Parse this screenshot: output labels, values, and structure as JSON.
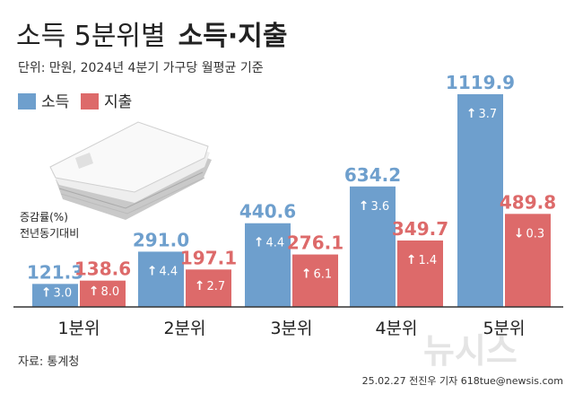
{
  "title": {
    "light": "소득 5분위별",
    "bold": "소득·지출"
  },
  "subtitle": "단위: 만원, 2024년 4분기 가구당 월평균 기준",
  "legend": [
    {
      "label": "소득",
      "color": "#6e9fcd"
    },
    {
      "label": "지출",
      "color": "#dd6a6a"
    }
  ],
  "change_note": [
    "증감률(%)",
    "전년동기대비"
  ],
  "source": "자료: 통계청",
  "credit": "25.02.27 전진우 기자 618tue@newsis.com",
  "watermark": "뉴시스",
  "chart_data": {
    "type": "bar",
    "categories": [
      "1분위",
      "2분위",
      "3분위",
      "4분위",
      "5분위"
    ],
    "ylim": [
      0,
      1200
    ],
    "series": [
      {
        "name": "소득",
        "color": "#6e9fcd",
        "values": [
          121.3,
          291.0,
          440.6,
          634.2,
          1119.9
        ],
        "labels": [
          "121.3",
          "291.0",
          "440.6",
          "634.2",
          "1119.9"
        ],
        "changes": [
          {
            "dir": "up",
            "value": "3.0"
          },
          {
            "dir": "up",
            "value": "4.4"
          },
          {
            "dir": "up",
            "value": "4.4"
          },
          {
            "dir": "up",
            "value": "3.6"
          },
          {
            "dir": "up",
            "value": "3.7"
          }
        ]
      },
      {
        "name": "지출",
        "color": "#dd6a6a",
        "values": [
          138.6,
          197.1,
          276.1,
          349.7,
          489.8
        ],
        "labels": [
          "138.6",
          "197.1",
          "276.1",
          "349.7",
          "489.8"
        ],
        "changes": [
          {
            "dir": "up",
            "value": "8.0"
          },
          {
            "dir": "up",
            "value": "2.7"
          },
          {
            "dir": "up",
            "value": "6.1"
          },
          {
            "dir": "up",
            "value": "1.4"
          },
          {
            "dir": "down",
            "value": "0.3"
          }
        ]
      }
    ]
  }
}
